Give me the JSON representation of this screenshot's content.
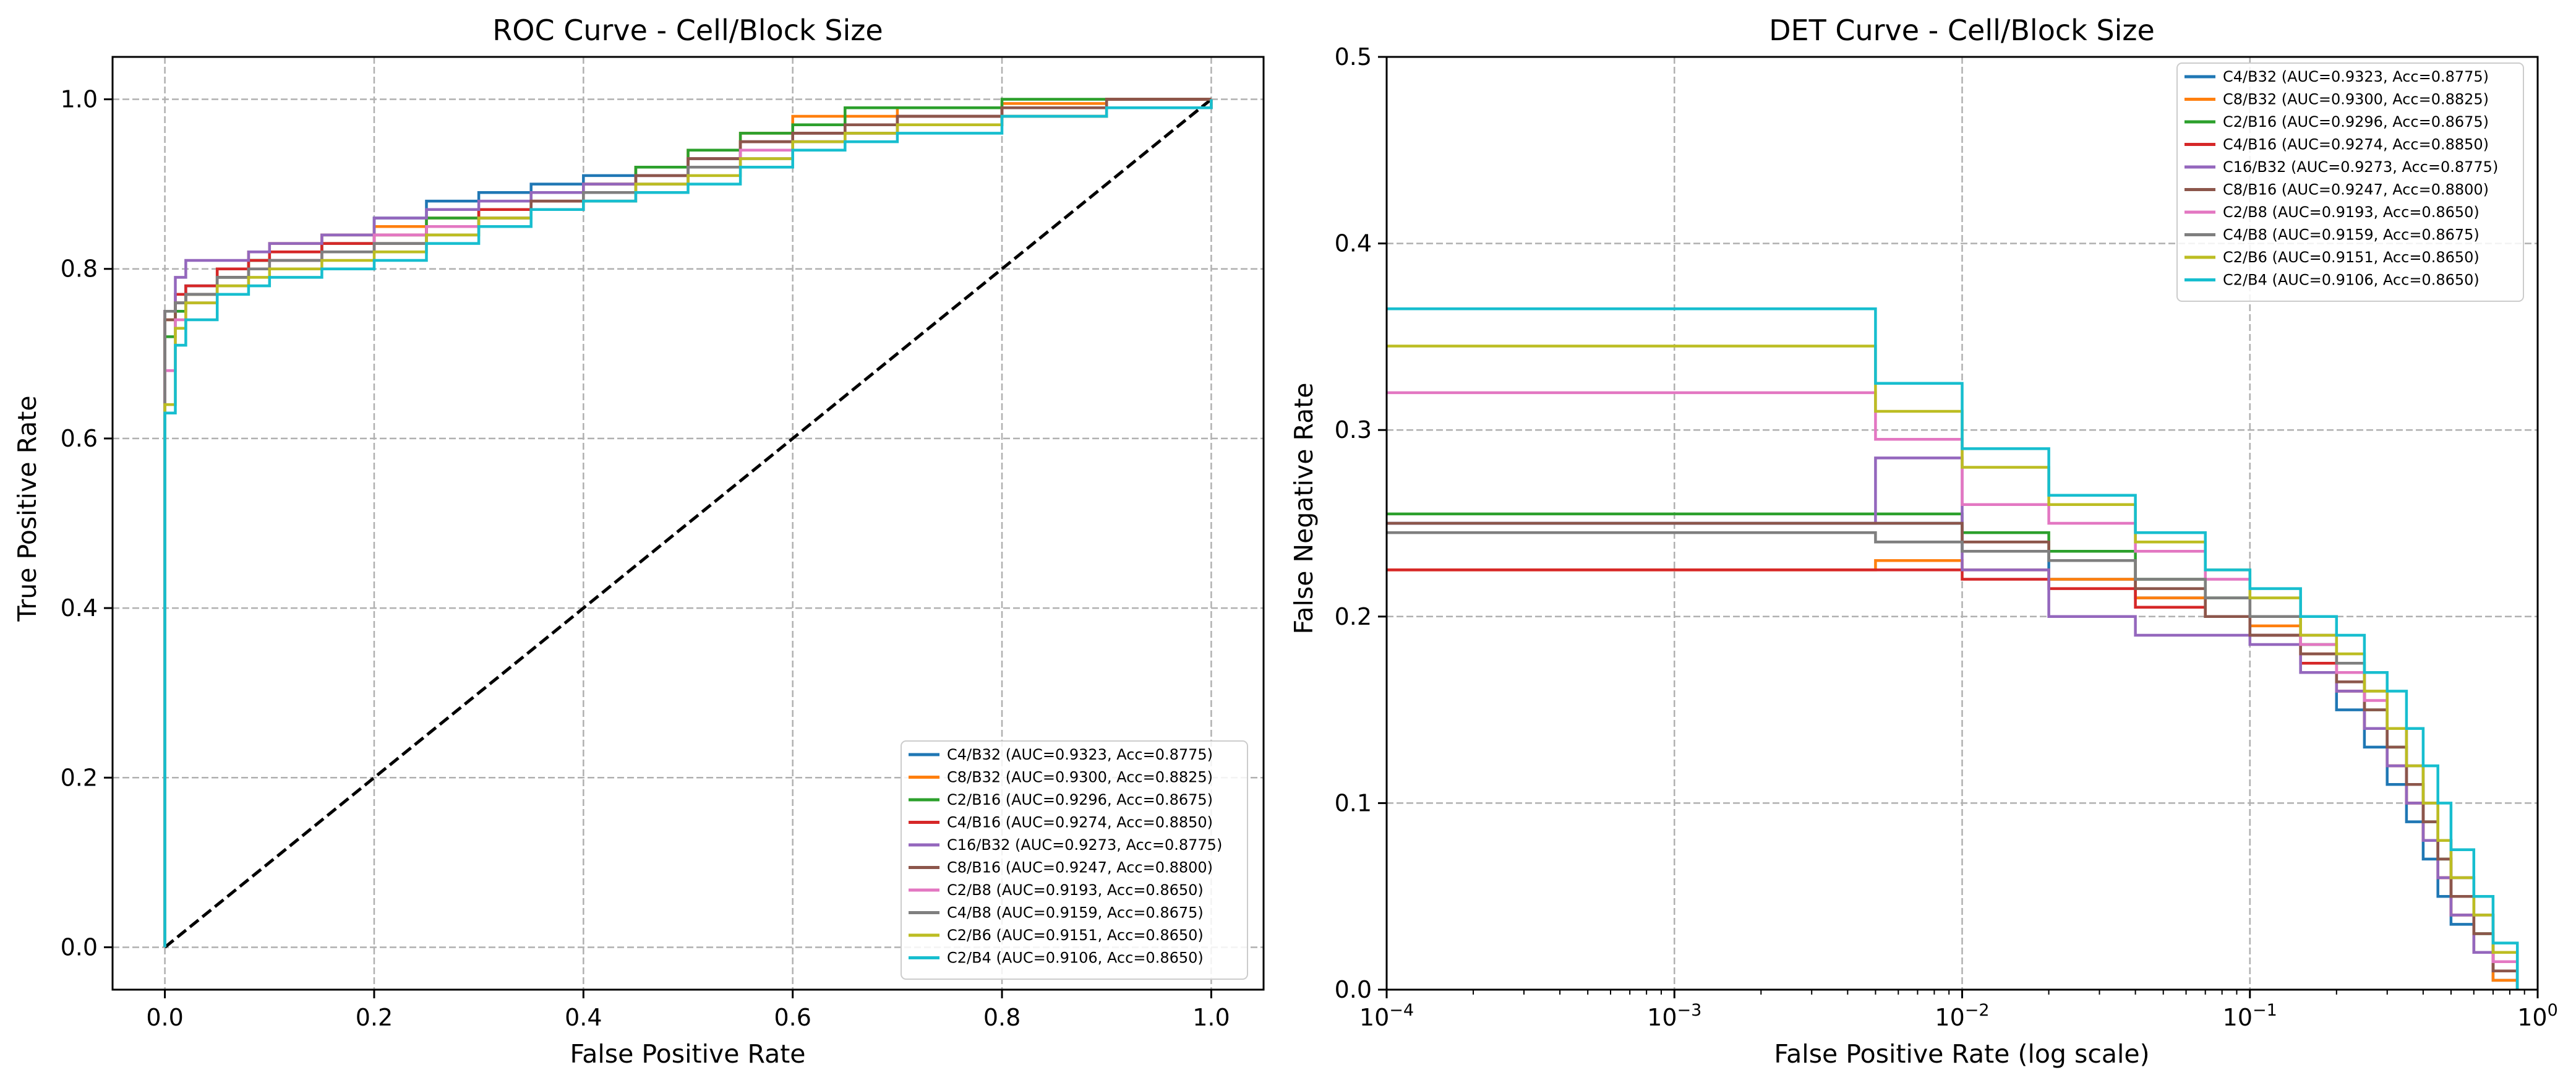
{
  "colors": {
    "c1": "#1f77b4",
    "c2": "#ff7f0e",
    "c3": "#2ca02c",
    "c4": "#d62728",
    "c5": "#9467bd",
    "c6": "#8c564b",
    "c7": "#e377c2",
    "c8": "#7f7f7f",
    "c9": "#bcbd22",
    "c10": "#17becf"
  },
  "chart_data": [
    {
      "type": "line",
      "title": "ROC Curve - Cell/Block Size",
      "xlabel": "False Positive Rate",
      "ylabel": "True Positive Rate",
      "xlim": [
        -0.05,
        1.05
      ],
      "ylim": [
        -0.05,
        1.05
      ],
      "xticks": [
        0.0,
        0.2,
        0.4,
        0.6,
        0.8,
        1.0
      ],
      "xtick_labels": [
        "0.0",
        "0.2",
        "0.4",
        "0.6",
        "0.8",
        "1.0"
      ],
      "yticks": [
        0.0,
        0.2,
        0.4,
        0.6,
        0.8,
        1.0
      ],
      "ytick_labels": [
        "0.0",
        "0.2",
        "0.4",
        "0.6",
        "0.8",
        "1.0"
      ],
      "grid": true,
      "legend_position": "lower-right",
      "diagonal": {
        "x": [
          0,
          1
        ],
        "y": [
          0,
          1
        ],
        "style": "dashed",
        "color": "#000000"
      },
      "series": [
        {
          "name": "C4/B32 (AUC=0.9323, Acc=0.8775)",
          "color": "#1f77b4",
          "x": [
            0,
            0,
            0.01,
            0.02,
            0.05,
            0.08,
            0.1,
            0.15,
            0.2,
            0.25,
            0.3,
            0.35,
            0.4,
            0.45,
            0.5,
            0.55,
            0.6,
            0.65,
            0.7,
            0.8,
            0.9,
            1.0
          ],
          "y": [
            0,
            0.75,
            0.76,
            0.78,
            0.8,
            0.81,
            0.82,
            0.84,
            0.86,
            0.88,
            0.89,
            0.9,
            0.91,
            0.92,
            0.93,
            0.95,
            0.96,
            0.97,
            0.98,
            0.99,
            1.0,
            1.0
          ]
        },
        {
          "name": "C8/B32 (AUC=0.9300, Acc=0.8825)",
          "color": "#ff7f0e",
          "x": [
            0,
            0,
            0.01,
            0.02,
            0.05,
            0.08,
            0.1,
            0.15,
            0.2,
            0.25,
            0.3,
            0.35,
            0.4,
            0.45,
            0.5,
            0.55,
            0.6,
            0.65,
            0.7,
            0.8,
            0.9,
            1.0
          ],
          "y": [
            0,
            0.74,
            0.76,
            0.77,
            0.8,
            0.82,
            0.83,
            0.84,
            0.85,
            0.86,
            0.87,
            0.89,
            0.9,
            0.92,
            0.94,
            0.96,
            0.98,
            0.98,
            0.99,
            0.995,
            1.0,
            1.0
          ]
        },
        {
          "name": "C2/B16 (AUC=0.9296, Acc=0.8675)",
          "color": "#2ca02c",
          "x": [
            0,
            0,
            0.01,
            0.02,
            0.05,
            0.08,
            0.1,
            0.15,
            0.2,
            0.25,
            0.3,
            0.35,
            0.4,
            0.45,
            0.5,
            0.55,
            0.6,
            0.65,
            0.7,
            0.8,
            0.9,
            1.0
          ],
          "y": [
            0,
            0.72,
            0.75,
            0.77,
            0.79,
            0.81,
            0.82,
            0.83,
            0.84,
            0.86,
            0.87,
            0.89,
            0.9,
            0.92,
            0.94,
            0.96,
            0.97,
            0.99,
            0.99,
            1.0,
            1.0,
            1.0
          ]
        },
        {
          "name": "C4/B16 (AUC=0.9274, Acc=0.8850)",
          "color": "#d62728",
          "x": [
            0,
            0,
            0.01,
            0.02,
            0.05,
            0.08,
            0.1,
            0.15,
            0.2,
            0.25,
            0.3,
            0.35,
            0.4,
            0.45,
            0.5,
            0.55,
            0.6,
            0.65,
            0.7,
            0.8,
            0.9,
            1.0
          ],
          "y": [
            0,
            0.75,
            0.77,
            0.78,
            0.8,
            0.81,
            0.82,
            0.83,
            0.84,
            0.85,
            0.87,
            0.88,
            0.9,
            0.91,
            0.93,
            0.95,
            0.96,
            0.97,
            0.98,
            0.99,
            1.0,
            1.0
          ]
        },
        {
          "name": "C16/B32 (AUC=0.9273, Acc=0.8775)",
          "color": "#9467bd",
          "x": [
            0,
            0,
            0.01,
            0.02,
            0.05,
            0.08,
            0.1,
            0.15,
            0.2,
            0.25,
            0.3,
            0.35,
            0.4,
            0.45,
            0.5,
            0.55,
            0.6,
            0.65,
            0.7,
            0.8,
            0.9,
            1.0
          ],
          "y": [
            0,
            0.75,
            0.79,
            0.81,
            0.81,
            0.82,
            0.83,
            0.84,
            0.86,
            0.87,
            0.88,
            0.89,
            0.9,
            0.91,
            0.93,
            0.94,
            0.95,
            0.96,
            0.97,
            0.98,
            0.99,
            1.0
          ]
        },
        {
          "name": "C8/B16 (AUC=0.9247, Acc=0.8800)",
          "color": "#8c564b",
          "x": [
            0,
            0,
            0.01,
            0.02,
            0.05,
            0.08,
            0.1,
            0.15,
            0.2,
            0.25,
            0.3,
            0.35,
            0.4,
            0.45,
            0.5,
            0.55,
            0.6,
            0.65,
            0.7,
            0.8,
            0.9,
            1.0
          ],
          "y": [
            0,
            0.74,
            0.76,
            0.77,
            0.79,
            0.8,
            0.81,
            0.82,
            0.83,
            0.85,
            0.86,
            0.88,
            0.89,
            0.91,
            0.93,
            0.95,
            0.96,
            0.97,
            0.98,
            0.99,
            1.0,
            1.0
          ]
        },
        {
          "name": "C2/B8 (AUC=0.9193, Acc=0.8650)",
          "color": "#e377c2",
          "x": [
            0,
            0,
            0.01,
            0.02,
            0.05,
            0.08,
            0.1,
            0.15,
            0.2,
            0.25,
            0.3,
            0.35,
            0.4,
            0.45,
            0.5,
            0.55,
            0.6,
            0.65,
            0.7,
            0.8,
            0.9,
            1.0
          ],
          "y": [
            0,
            0.68,
            0.74,
            0.76,
            0.78,
            0.8,
            0.81,
            0.82,
            0.84,
            0.85,
            0.86,
            0.87,
            0.88,
            0.9,
            0.92,
            0.94,
            0.95,
            0.96,
            0.97,
            0.98,
            0.99,
            1.0
          ]
        },
        {
          "name": "C4/B8 (AUC=0.9159, Acc=0.8675)",
          "color": "#7f7f7f",
          "x": [
            0,
            0,
            0.01,
            0.02,
            0.05,
            0.08,
            0.1,
            0.15,
            0.2,
            0.25,
            0.3,
            0.35,
            0.4,
            0.45,
            0.5,
            0.55,
            0.6,
            0.65,
            0.7,
            0.8,
            0.9,
            1.0
          ],
          "y": [
            0,
            0.75,
            0.76,
            0.77,
            0.79,
            0.8,
            0.81,
            0.82,
            0.83,
            0.84,
            0.86,
            0.87,
            0.89,
            0.9,
            0.92,
            0.93,
            0.95,
            0.96,
            0.97,
            0.98,
            0.99,
            1.0
          ]
        },
        {
          "name": "C2/B6 (AUC=0.9151, Acc=0.8650)",
          "color": "#bcbd22",
          "x": [
            0,
            0,
            0.01,
            0.02,
            0.05,
            0.08,
            0.1,
            0.15,
            0.2,
            0.25,
            0.3,
            0.35,
            0.4,
            0.45,
            0.5,
            0.55,
            0.6,
            0.65,
            0.7,
            0.8,
            0.9,
            1.0
          ],
          "y": [
            0,
            0.64,
            0.73,
            0.76,
            0.78,
            0.79,
            0.8,
            0.81,
            0.82,
            0.84,
            0.86,
            0.87,
            0.88,
            0.9,
            0.91,
            0.93,
            0.95,
            0.96,
            0.97,
            0.98,
            0.99,
            1.0
          ]
        },
        {
          "name": "C2/B4 (AUC=0.9106, Acc=0.8650)",
          "color": "#17becf",
          "x": [
            0,
            0,
            0.01,
            0.02,
            0.05,
            0.08,
            0.1,
            0.15,
            0.2,
            0.25,
            0.3,
            0.35,
            0.4,
            0.45,
            0.5,
            0.55,
            0.6,
            0.65,
            0.7,
            0.8,
            0.9,
            1.0
          ],
          "y": [
            0,
            0.63,
            0.71,
            0.74,
            0.77,
            0.78,
            0.79,
            0.8,
            0.81,
            0.83,
            0.85,
            0.87,
            0.88,
            0.89,
            0.9,
            0.92,
            0.94,
            0.95,
            0.96,
            0.98,
            0.99,
            1.0
          ]
        }
      ]
    },
    {
      "type": "line",
      "title": "DET Curve - Cell/Block Size",
      "xlabel": "False Positive Rate (log scale)",
      "ylabel": "False Negative Rate",
      "xscale": "log",
      "xlim": [
        0.0001,
        1
      ],
      "ylim": [
        0,
        0.5
      ],
      "xticks": [
        0.0001,
        0.001,
        0.01,
        0.1,
        1
      ],
      "xtick_labels": [
        {
          "base": "10",
          "exp": "−4"
        },
        {
          "base": "10",
          "exp": "−3"
        },
        {
          "base": "10",
          "exp": "−2"
        },
        {
          "base": "10",
          "exp": "−1"
        },
        {
          "base": "10",
          "exp": "0"
        }
      ],
      "yticks": [
        0.0,
        0.1,
        0.2,
        0.3,
        0.4,
        0.5
      ],
      "ytick_labels": [
        "0.0",
        "0.1",
        "0.2",
        "0.3",
        "0.4",
        "0.5"
      ],
      "grid": true,
      "legend_position": "upper-right",
      "series": [
        {
          "name": "C4/B32 (AUC=0.9323, Acc=0.8775)",
          "color": "#1f77b4",
          "x": [
            0.0001,
            0.005,
            0.01,
            0.02,
            0.04,
            0.07,
            0.1,
            0.15,
            0.2,
            0.25,
            0.3,
            0.35,
            0.4,
            0.45,
            0.5,
            0.6,
            0.7,
            0.85
          ],
          "y": [
            0.25,
            0.25,
            0.235,
            0.22,
            0.21,
            0.2,
            0.19,
            0.17,
            0.15,
            0.13,
            0.11,
            0.09,
            0.07,
            0.05,
            0.035,
            0.02,
            0.005,
            0.0
          ]
        },
        {
          "name": "C8/B32 (AUC=0.9300, Acc=0.8825)",
          "color": "#ff7f0e",
          "x": [
            0.0001,
            0.005,
            0.01,
            0.02,
            0.04,
            0.07,
            0.1,
            0.15,
            0.2,
            0.25,
            0.3,
            0.35,
            0.4,
            0.45,
            0.5,
            0.6,
            0.7,
            0.85
          ],
          "y": [
            0.225,
            0.23,
            0.225,
            0.22,
            0.21,
            0.2,
            0.195,
            0.18,
            0.16,
            0.14,
            0.12,
            0.1,
            0.08,
            0.06,
            0.04,
            0.02,
            0.005,
            0.0
          ]
        },
        {
          "name": "C2/B16 (AUC=0.9296, Acc=0.8675)",
          "color": "#2ca02c",
          "x": [
            0.0001,
            0.005,
            0.01,
            0.02,
            0.04,
            0.07,
            0.1,
            0.15,
            0.2,
            0.25,
            0.3,
            0.35,
            0.4,
            0.45,
            0.5,
            0.6,
            0.7,
            0.85
          ],
          "y": [
            0.255,
            0.255,
            0.245,
            0.235,
            0.22,
            0.21,
            0.2,
            0.185,
            0.17,
            0.15,
            0.13,
            0.11,
            0.09,
            0.07,
            0.05,
            0.03,
            0.01,
            0.0
          ]
        },
        {
          "name": "C4/B16 (AUC=0.9274, Acc=0.8850)",
          "color": "#d62728",
          "x": [
            0.0001,
            0.005,
            0.01,
            0.02,
            0.04,
            0.07,
            0.1,
            0.15,
            0.2,
            0.25,
            0.3,
            0.35,
            0.4,
            0.45,
            0.5,
            0.6,
            0.7,
            0.85
          ],
          "y": [
            0.225,
            0.225,
            0.22,
            0.215,
            0.205,
            0.2,
            0.19,
            0.175,
            0.16,
            0.14,
            0.12,
            0.1,
            0.08,
            0.06,
            0.04,
            0.02,
            0.01,
            0.0
          ]
        },
        {
          "name": "C16/B32 (AUC=0.9273, Acc=0.8775)",
          "color": "#9467bd",
          "x": [
            0.0001,
            0.005,
            0.01,
            0.02,
            0.04,
            0.07,
            0.1,
            0.15,
            0.2,
            0.25,
            0.3,
            0.35,
            0.4,
            0.45,
            0.5,
            0.6,
            0.7,
            0.85
          ],
          "y": [
            0.25,
            0.285,
            0.225,
            0.2,
            0.19,
            0.19,
            0.185,
            0.17,
            0.16,
            0.14,
            0.12,
            0.1,
            0.08,
            0.06,
            0.04,
            0.02,
            0.01,
            0.0
          ]
        },
        {
          "name": "C8/B16 (AUC=0.9247, Acc=0.8800)",
          "color": "#8c564b",
          "x": [
            0.0001,
            0.005,
            0.01,
            0.02,
            0.04,
            0.07,
            0.1,
            0.15,
            0.2,
            0.25,
            0.3,
            0.35,
            0.4,
            0.45,
            0.5,
            0.6,
            0.7,
            0.85
          ],
          "y": [
            0.25,
            0.25,
            0.24,
            0.23,
            0.215,
            0.2,
            0.19,
            0.18,
            0.165,
            0.15,
            0.13,
            0.11,
            0.09,
            0.07,
            0.05,
            0.03,
            0.01,
            0.0
          ]
        },
        {
          "name": "C2/B8 (AUC=0.9193, Acc=0.8650)",
          "color": "#e377c2",
          "x": [
            0.0001,
            0.005,
            0.01,
            0.02,
            0.04,
            0.07,
            0.1,
            0.15,
            0.2,
            0.25,
            0.3,
            0.35,
            0.4,
            0.45,
            0.5,
            0.6,
            0.7,
            0.85
          ],
          "y": [
            0.32,
            0.295,
            0.26,
            0.25,
            0.235,
            0.22,
            0.2,
            0.185,
            0.17,
            0.155,
            0.14,
            0.12,
            0.1,
            0.08,
            0.06,
            0.04,
            0.015,
            0.0
          ]
        },
        {
          "name": "C4/B8 (AUC=0.9159, Acc=0.8675)",
          "color": "#7f7f7f",
          "x": [
            0.0001,
            0.005,
            0.01,
            0.02,
            0.04,
            0.07,
            0.1,
            0.15,
            0.2,
            0.25,
            0.3,
            0.35,
            0.4,
            0.45,
            0.5,
            0.6,
            0.7,
            0.85
          ],
          "y": [
            0.245,
            0.24,
            0.235,
            0.23,
            0.22,
            0.21,
            0.2,
            0.19,
            0.175,
            0.16,
            0.14,
            0.12,
            0.1,
            0.08,
            0.06,
            0.04,
            0.02,
            0.0
          ]
        },
        {
          "name": "C2/B6 (AUC=0.9151, Acc=0.8650)",
          "color": "#bcbd22",
          "x": [
            0.0001,
            0.005,
            0.01,
            0.02,
            0.04,
            0.07,
            0.1,
            0.15,
            0.2,
            0.25,
            0.3,
            0.35,
            0.4,
            0.45,
            0.5,
            0.6,
            0.7,
            0.85
          ],
          "y": [
            0.345,
            0.31,
            0.28,
            0.26,
            0.24,
            0.225,
            0.21,
            0.19,
            0.18,
            0.16,
            0.14,
            0.12,
            0.1,
            0.08,
            0.06,
            0.04,
            0.02,
            0.0
          ]
        },
        {
          "name": "C2/B4 (AUC=0.9106, Acc=0.8650)",
          "color": "#17becf",
          "x": [
            0.0001,
            0.005,
            0.01,
            0.02,
            0.04,
            0.07,
            0.1,
            0.15,
            0.2,
            0.25,
            0.3,
            0.35,
            0.4,
            0.45,
            0.5,
            0.6,
            0.7,
            0.85
          ],
          "y": [
            0.365,
            0.325,
            0.29,
            0.265,
            0.245,
            0.225,
            0.215,
            0.2,
            0.19,
            0.17,
            0.16,
            0.14,
            0.12,
            0.1,
            0.075,
            0.05,
            0.025,
            0.0
          ]
        }
      ]
    }
  ]
}
